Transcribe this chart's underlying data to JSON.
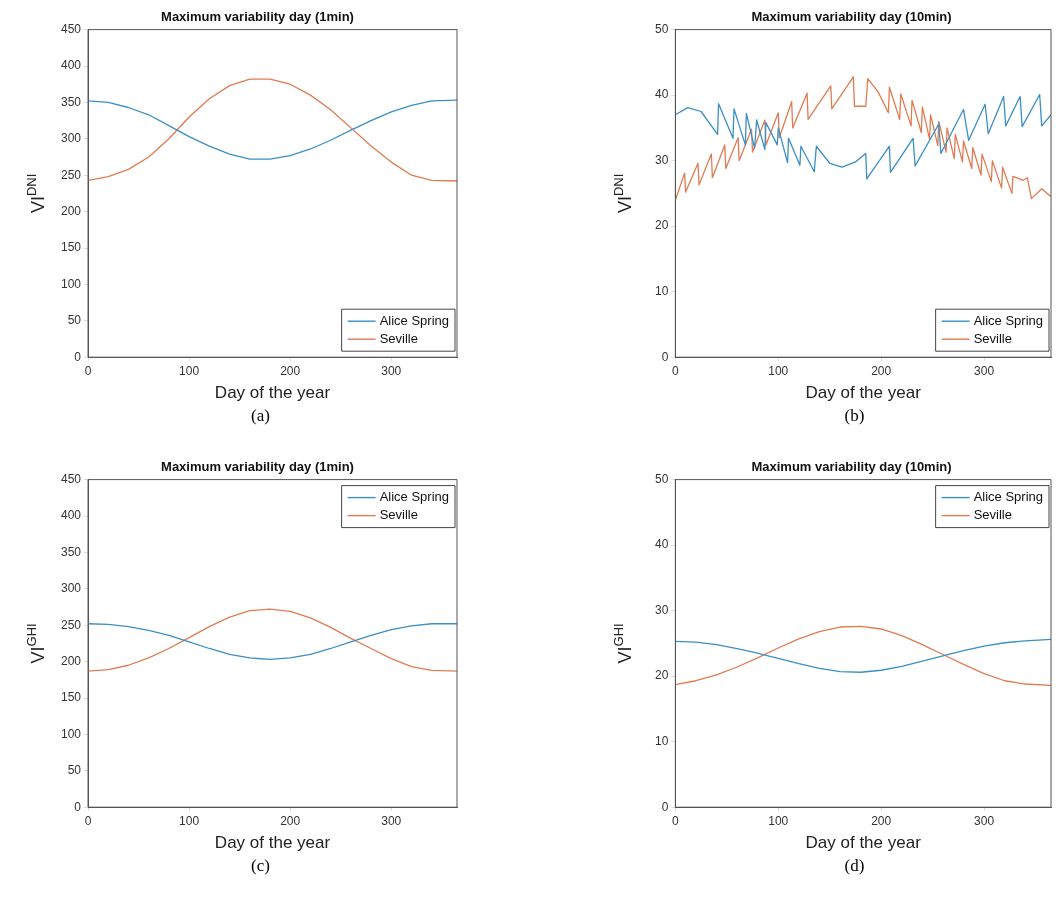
{
  "chart_data": [
    {
      "type": "line",
      "title": "Maximum variability day (1min)",
      "xlabel": "Day of the year",
      "ylabel": "VI$^{DNI}$",
      "xlim": [
        0,
        365
      ],
      "xticks": [
        0,
        100,
        200,
        300
      ],
      "ylim": [
        0,
        450
      ],
      "yticks": [
        0,
        50,
        100,
        150,
        200,
        250,
        300,
        350,
        400,
        450
      ],
      "legend": "bottom right",
      "annotations": [
        "(a)"
      ],
      "x": [
        0,
        20,
        40,
        60,
        80,
        100,
        120,
        140,
        160,
        180,
        200,
        220,
        240,
        260,
        280,
        300,
        320,
        340,
        365
      ],
      "series": [
        {
          "name": "Alice Spring",
          "color": "#3a8fc6",
          "values": [
            352,
            350,
            343,
            333,
            318,
            303,
            290,
            279,
            272,
            272,
            277,
            286,
            298,
            312,
            325,
            337,
            346,
            352,
            353
          ]
        },
        {
          "name": "Seville",
          "color": "#e07b52",
          "values": [
            243,
            248,
            258,
            275,
            300,
            330,
            355,
            373,
            382,
            382,
            375,
            360,
            340,
            315,
            290,
            268,
            250,
            243,
            242
          ]
        }
      ]
    },
    {
      "type": "line",
      "title": "Maximum variability day (10min)",
      "xlabel": "Day of the year",
      "ylabel": "VI$^{DNI}$",
      "xlim": [
        0,
        365
      ],
      "xticks": [
        0,
        100,
        200,
        300
      ],
      "ylim": [
        0,
        50
      ],
      "yticks": [
        0,
        10,
        20,
        30,
        40,
        50
      ],
      "legend": "bottom right",
      "annotations": [
        "(b)"
      ],
      "series": [
        {
          "name": "Alice Spring",
          "color": "#3a8fc6",
          "x": [
            0,
            12,
            25,
            41,
            42,
            56,
            57,
            68,
            69,
            77,
            79,
            87,
            88,
            99,
            100,
            109,
            110,
            121,
            122,
            135,
            137,
            150,
            162,
            175,
            185,
            186,
            208,
            209,
            231,
            233,
            256,
            258,
            280,
            285,
            301,
            304,
            319,
            321,
            335,
            337,
            354,
            356,
            365
          ],
          "values": [
            37.0,
            38.1,
            37.5,
            34.0,
            38.7,
            33.4,
            37.9,
            32.4,
            37.2,
            31.9,
            36.2,
            31.7,
            35.8,
            32.4,
            35.0,
            29.7,
            33.4,
            29.3,
            32.2,
            28.3,
            32.2,
            29.6,
            29.0,
            29.8,
            31.1,
            27.2,
            32.2,
            28.2,
            33.4,
            29.2,
            35.6,
            31.1,
            37.8,
            33.1,
            38.6,
            34.1,
            39.8,
            35.3,
            39.8,
            35.2,
            40.1,
            35.3,
            37.0
          ]
        },
        {
          "name": "Seville",
          "color": "#e07b52",
          "x": [
            0,
            9,
            10,
            22,
            23,
            35,
            36,
            48,
            49,
            61,
            62,
            74,
            75,
            87,
            88,
            100,
            101,
            113,
            114,
            128,
            129,
            151,
            152,
            173,
            174,
            185,
            187,
            197,
            207,
            208,
            218,
            219,
            229,
            230,
            239,
            240,
            247,
            248,
            255,
            256,
            263,
            264,
            271,
            272,
            279,
            280,
            288,
            289,
            297,
            298,
            307,
            308,
            317,
            318,
            327,
            328,
            338,
            342,
            346,
            356,
            365
          ],
          "values": [
            24.0,
            28.1,
            25.2,
            29.6,
            26.3,
            31.0,
            27.4,
            32.4,
            28.8,
            33.5,
            30.0,
            34.8,
            31.3,
            36.2,
            32.4,
            37.3,
            33.5,
            39.0,
            35.0,
            40.3,
            36.3,
            41.4,
            37.9,
            42.8,
            38.3,
            38.3,
            42.5,
            40.5,
            37.3,
            41.2,
            36.3,
            40.2,
            35.3,
            39.2,
            34.3,
            38.2,
            33.3,
            37.0,
            32.3,
            36.0,
            31.3,
            35.0,
            30.3,
            34.0,
            29.8,
            33.0,
            28.8,
            32.0,
            27.8,
            31.0,
            26.8,
            30.0,
            25.8,
            29.0,
            25.0,
            27.6,
            27.0,
            27.4,
            24.2,
            25.7,
            24.5
          ]
        }
      ]
    },
    {
      "type": "line",
      "title": "Maximum variability day (1min)",
      "xlabel": "Day of the year",
      "ylabel": "VI$^{GHI}$",
      "xlim": [
        0,
        365
      ],
      "xticks": [
        0,
        100,
        200,
        300
      ],
      "ylim": [
        0,
        450
      ],
      "yticks": [
        0,
        50,
        100,
        150,
        200,
        250,
        300,
        350,
        400,
        450
      ],
      "legend": "top right",
      "annotations": [
        "(c)"
      ],
      "x": [
        0,
        20,
        40,
        60,
        80,
        100,
        120,
        140,
        160,
        180,
        200,
        220,
        240,
        260,
        280,
        300,
        320,
        340,
        365
      ],
      "series": [
        {
          "name": "Alice Spring",
          "color": "#3a8fc6",
          "values": [
            252,
            251,
            248,
            243,
            236,
            227,
            218,
            210,
            205,
            203,
            205,
            210,
            218,
            227,
            236,
            244,
            249,
            252,
            252
          ]
        },
        {
          "name": "Seville",
          "color": "#e07b52",
          "values": [
            187,
            189,
            195,
            205,
            218,
            233,
            248,
            261,
            270,
            272,
            269,
            260,
            247,
            232,
            218,
            204,
            193,
            188,
            187
          ]
        }
      ]
    },
    {
      "type": "line",
      "title": "Maximum variability day (10min)",
      "xlabel": "Day of the year",
      "ylabel": "VI$^{GHI}$",
      "xlim": [
        0,
        365
      ],
      "xticks": [
        0,
        100,
        200,
        300
      ],
      "ylim": [
        0,
        50
      ],
      "yticks": [
        0,
        10,
        20,
        30,
        40,
        50
      ],
      "legend": "top right",
      "annotations": [
        "(d)"
      ],
      "x": [
        0,
        20,
        40,
        60,
        80,
        100,
        120,
        140,
        160,
        180,
        200,
        220,
        240,
        260,
        280,
        300,
        320,
        340,
        365
      ],
      "series": [
        {
          "name": "Alice Spring",
          "color": "#3a8fc6",
          "values": [
            25.3,
            25.2,
            24.8,
            24.2,
            23.5,
            22.7,
            21.9,
            21.2,
            20.7,
            20.6,
            20.9,
            21.5,
            22.3,
            23.1,
            23.9,
            24.6,
            25.1,
            25.4,
            25.6
          ]
        },
        {
          "name": "Seville",
          "color": "#e07b52",
          "values": [
            18.7,
            19.3,
            20.2,
            21.4,
            22.8,
            24.3,
            25.7,
            26.8,
            27.5,
            27.6,
            27.2,
            26.2,
            24.8,
            23.3,
            21.8,
            20.4,
            19.3,
            18.8,
            18.6
          ]
        }
      ]
    }
  ]
}
